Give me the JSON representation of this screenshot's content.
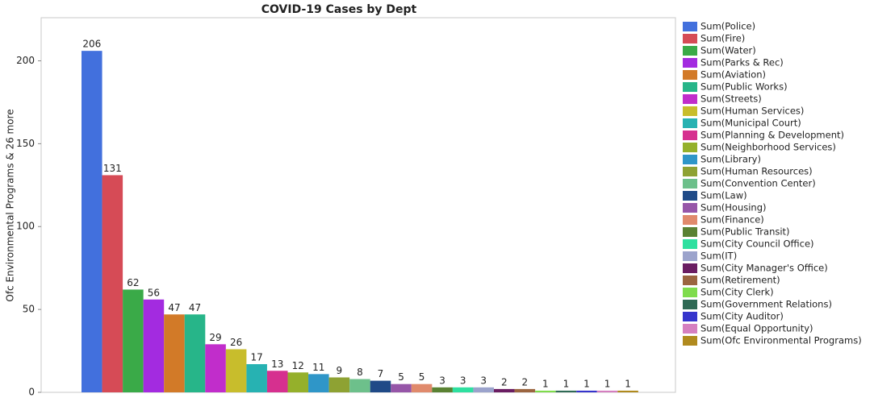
{
  "chart_data": {
    "type": "bar",
    "title": "COVID-19 Cases by Dept",
    "y_label": "Ofc Environmental Programs & 26 more",
    "ylim": [
      0,
      226
    ],
    "yticks": [
      0,
      50,
      100,
      150,
      200
    ],
    "grid": false,
    "legend": "right",
    "series": [
      {
        "name": "Sum(Police)",
        "color": "#4270dd",
        "values": [
          206
        ]
      },
      {
        "name": "Sum(Fire)",
        "color": "#d64b56",
        "values": [
          131
        ]
      },
      {
        "name": "Sum(Water)",
        "color": "#3aaa48",
        "values": [
          62
        ]
      },
      {
        "name": "Sum(Parks & Rec)",
        "color": "#a32be0",
        "values": [
          56
        ]
      },
      {
        "name": "Sum(Aviation)",
        "color": "#d27a28",
        "values": [
          47
        ]
      },
      {
        "name": "Sum(Public Works)",
        "color": "#27b589",
        "values": [
          47
        ]
      },
      {
        "name": "Sum(Streets)",
        "color": "#c12dcb",
        "values": [
          29
        ]
      },
      {
        "name": "Sum(Human Services)",
        "color": "#c8bd2c",
        "values": [
          26
        ]
      },
      {
        "name": "Sum(Municipal Court)",
        "color": "#27b2b2",
        "values": [
          17
        ]
      },
      {
        "name": "Sum(Planning & Development)",
        "color": "#d6308f",
        "values": [
          13
        ]
      },
      {
        "name": "Sum(Neighborhood Services)",
        "color": "#95b02b",
        "values": [
          12
        ]
      },
      {
        "name": "Sum(Library)",
        "color": "#2f96c8",
        "values": [
          11
        ]
      },
      {
        "name": "Sum(Human Resources)",
        "color": "#8ea233",
        "values": [
          9
        ]
      },
      {
        "name": "Sum(Convention Center)",
        "color": "#6dc08b",
        "values": [
          8
        ]
      },
      {
        "name": "Sum(Law)",
        "color": "#1f4a87",
        "values": [
          7
        ]
      },
      {
        "name": "Sum(Housing)",
        "color": "#9656a8",
        "values": [
          5
        ]
      },
      {
        "name": "Sum(Finance)",
        "color": "#e08a6c",
        "values": [
          5
        ]
      },
      {
        "name": "Sum(Public Transit)",
        "color": "#5a8233",
        "values": [
          3
        ]
      },
      {
        "name": "Sum(City Council Office)",
        "color": "#2ee0a0",
        "values": [
          3
        ]
      },
      {
        "name": "Sum(IT)",
        "color": "#9ba3cc",
        "values": [
          3
        ]
      },
      {
        "name": "Sum(City Manager's Office)",
        "color": "#6a1d62",
        "values": [
          2
        ]
      },
      {
        "name": "Sum(Retirement)",
        "color": "#9b6540",
        "values": [
          2
        ]
      },
      {
        "name": "Sum(City Clerk)",
        "color": "#7fdc4c",
        "values": [
          1
        ]
      },
      {
        "name": "Sum(Government Relations)",
        "color": "#2f6a55",
        "values": [
          1
        ]
      },
      {
        "name": "Sum(City Auditor)",
        "color": "#3534cc",
        "values": [
          1
        ]
      },
      {
        "name": "Sum(Equal Opportunity)",
        "color": "#d57fc0",
        "values": [
          1
        ]
      },
      {
        "name": "Sum(Ofc Environmental Programs)",
        "color": "#b08a1e",
        "values": [
          1
        ]
      }
    ]
  }
}
